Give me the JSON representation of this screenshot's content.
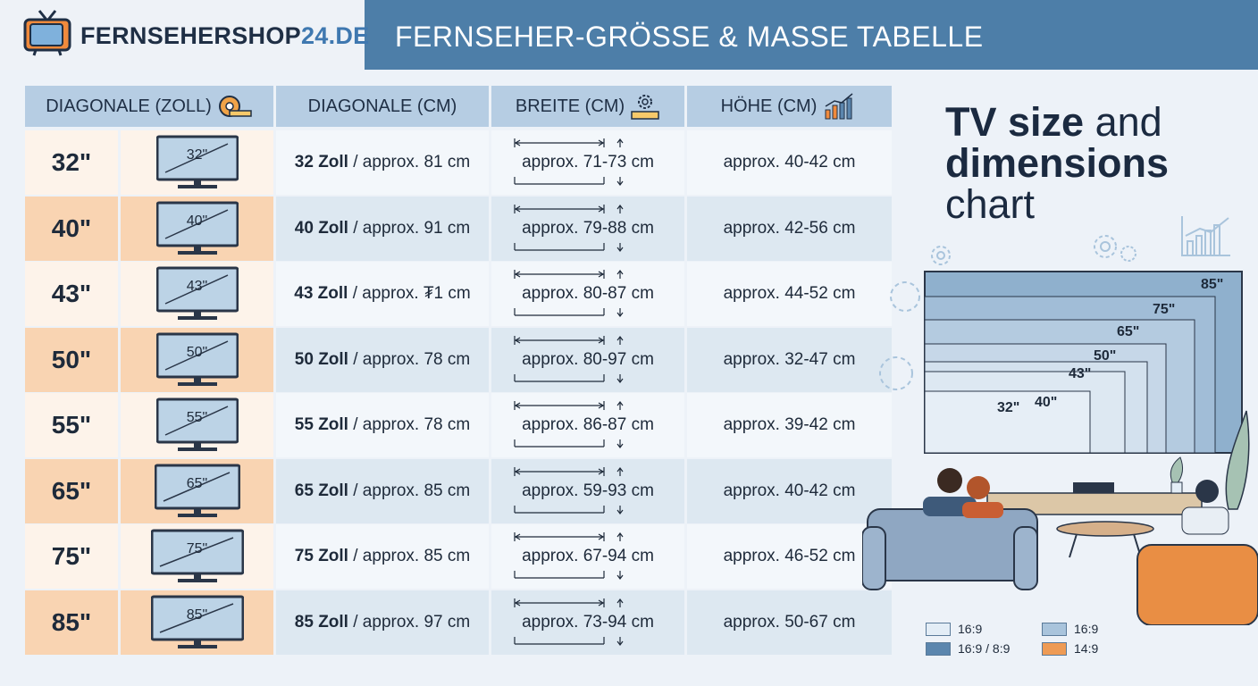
{
  "header": {
    "logo": {
      "main": "FERNSEHERSHOP",
      "accent": "24.DE",
      "icon": "retro-tv-icon"
    },
    "title": "FERNSEHER-GRÖSSE & MASSE TABELLE"
  },
  "table": {
    "headers": [
      "DIAGONALE (ZOLL)",
      "DIAGONALE (CM)",
      "BREITE (CM)",
      "HÖHE (CM)"
    ],
    "header_icons": [
      "tape-measure-icon",
      "",
      "gear-ruler-icon",
      "bar-chart-icon"
    ],
    "rows": [
      {
        "size": "32\"",
        "tv_label": "32\"",
        "diag_bold": "32 Zoll",
        "diag_rest": " / approx. 81 cm",
        "width": "approx. 71-73 cm",
        "height": "approx. 40-42 cm"
      },
      {
        "size": "40\"",
        "tv_label": "40\"",
        "diag_bold": "40 Zoll",
        "diag_rest": " / approx. 91 cm",
        "width": "approx. 79-88 cm",
        "height": "approx. 42-56 cm"
      },
      {
        "size": "43\"",
        "tv_label": "43\"",
        "diag_bold": "43 Zoll",
        "diag_rest": " / approx. ₮1 cm",
        "width": "approx. 80-87 cm",
        "height": "approx. 44-52 cm"
      },
      {
        "size": "50\"",
        "tv_label": "50\"",
        "diag_bold": "50 Zoll",
        "diag_rest": " / approx. 78 cm",
        "width": "approx. 80-97 cm",
        "height": "approx. 32-47 cm"
      },
      {
        "size": "55\"",
        "tv_label": "55\"",
        "diag_bold": "55 Zoll",
        "diag_rest": " / approx. 78 cm",
        "width": "approx. 86-87 cm",
        "height": "approx. 39-42 cm"
      },
      {
        "size": "65\"",
        "tv_label": "65\"",
        "diag_bold": "65 Zoll",
        "diag_rest": " / approx. 85 cm",
        "width": "approx. 59-93 cm",
        "height": "approx. 40-42 cm"
      },
      {
        "size": "75\"",
        "tv_label": "75\"",
        "diag_bold": "75 Zoll",
        "diag_rest": " / approx. 85 cm",
        "width": "approx. 67-94 cm",
        "height": "approx. 46-52 cm"
      },
      {
        "size": "85\"",
        "tv_label": "85\"",
        "diag_bold": "85 Zoll",
        "diag_rest": " / approx. 97 cm",
        "width": "approx. 73-94 cm",
        "height": "approx. 50-67 cm"
      }
    ]
  },
  "panel": {
    "title_bold_1": "TV size",
    "title_normal_1": " and",
    "title_bold_2": "dimensions",
    "title_normal_2": "chart",
    "tv_sizes": [
      "85\"",
      "75\"",
      "65\"",
      "50\"",
      "43\"",
      "40\"",
      "32\""
    ],
    "legend": [
      {
        "label": "16:9",
        "color": "#e3edf6"
      },
      {
        "label": "16:9",
        "color": "#a9c4dc"
      },
      {
        "label": "16:9 / 8:9",
        "color": "#5b86ae"
      },
      {
        "label": "14:9",
        "color": "#ee9b55"
      }
    ]
  },
  "colors": {
    "header": "#4d7ea8",
    "row_odd_size": "#fdf3ea",
    "row_even_size": "#f9d4b2",
    "row_odd": "#f3f7fb",
    "row_even": "#dde8f1",
    "tv_frame": "#2a3648",
    "tv_screen": "#bcd3e6"
  }
}
